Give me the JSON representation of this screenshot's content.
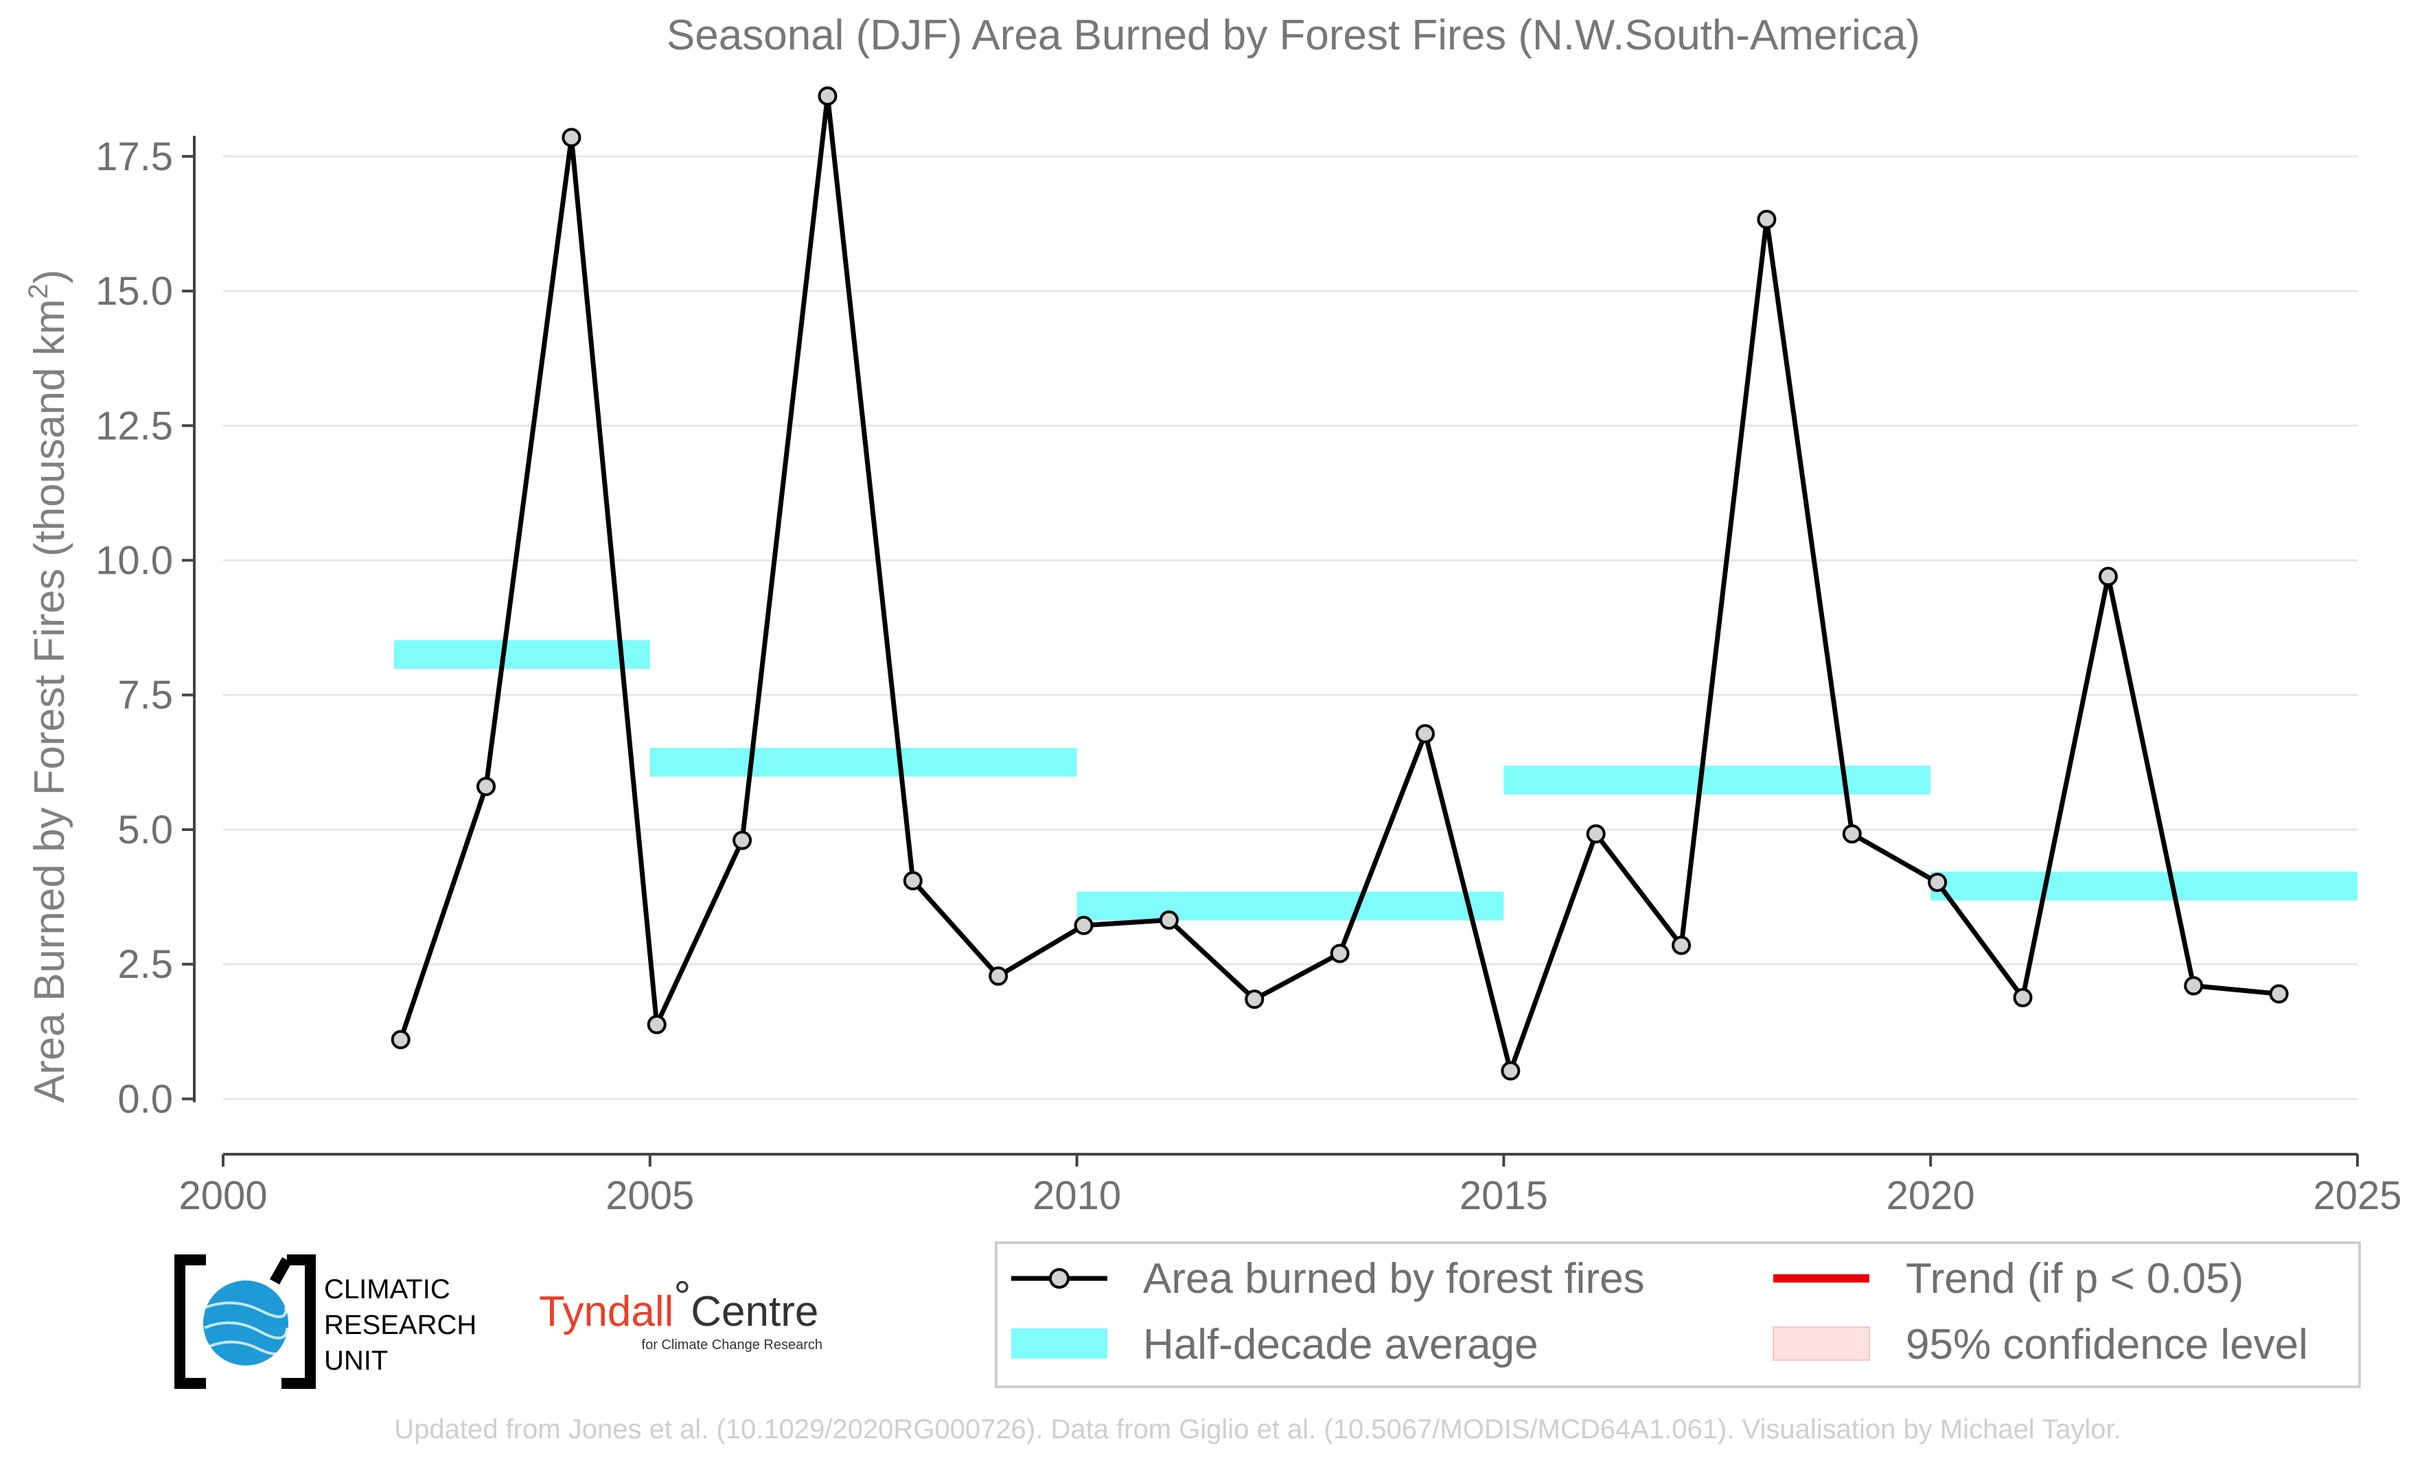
{
  "chart_data": {
    "type": "line",
    "title": "Seasonal (DJF) Area Burned by Forest Fires (N.W.South-America)",
    "ylabel_main": "Area Burned by Forest Fires (thousand km",
    "ylabel_sup": "2",
    "ylabel_end": ")",
    "xlim": [
      2000,
      2025
    ],
    "ylim": [
      -0.9,
      18.9
    ],
    "xticks": [
      2000,
      2005,
      2010,
      2015,
      2020,
      2025
    ],
    "yticks": [
      0.0,
      2.5,
      5.0,
      7.5,
      10.0,
      12.5,
      15.0,
      17.5
    ],
    "ytick_labels": [
      "0.0",
      "2.5",
      "5.0",
      "7.5",
      "10.0",
      "12.5",
      "15.0",
      "17.5"
    ],
    "grid": true,
    "series": [
      {
        "name": "Area burned by forest fires",
        "color": "#000000",
        "marker_fill": "#d3d3d3",
        "x": [
          2002.08,
          2003.08,
          2004.08,
          2005.08,
          2006.08,
          2007.08,
          2008.08,
          2009.08,
          2010.08,
          2011.08,
          2012.08,
          2013.08,
          2014.08,
          2015.08,
          2016.08,
          2017.08,
          2018.08,
          2019.08,
          2020.08,
          2021.08,
          2022.08,
          2023.08,
          2024.08
        ],
        "y": [
          1.1,
          5.8,
          17.85,
          1.38,
          4.8,
          18.62,
          4.05,
          2.28,
          3.22,
          3.32,
          1.85,
          2.7,
          6.78,
          0.52,
          4.92,
          2.85,
          16.33,
          4.92,
          4.02,
          1.88,
          9.7,
          2.1,
          1.95
        ]
      },
      {
        "name": "Half-decade average",
        "color": "#7ffcfc",
        "segments": [
          {
            "x0": 2002.0,
            "x1": 2005.0,
            "y": 8.25
          },
          {
            "x0": 2005.0,
            "x1": 2010.0,
            "y": 6.25
          },
          {
            "x0": 2010.0,
            "x1": 2015.0,
            "y": 3.58
          },
          {
            "x0": 2015.0,
            "x1": 2020.0,
            "y": 5.92
          },
          {
            "x0": 2020.0,
            "x1": 2025.0,
            "y": 3.95
          }
        ]
      }
    ],
    "legend": {
      "placement": "bottom-right",
      "items": [
        {
          "label": "Area burned by forest fires",
          "kind": "line-marker",
          "color": "#000000"
        },
        {
          "label": "Trend (if p < 0.05)",
          "kind": "line",
          "color": "#e8000b"
        },
        {
          "label": "Half-decade average",
          "kind": "band",
          "color": "#7ffcfc"
        },
        {
          "label": "95% confidence level",
          "kind": "patch",
          "color": "#fde0e0"
        }
      ]
    }
  },
  "logos": {
    "cru_lines": [
      "CLIMATIC",
      "RESEARCH",
      "UNIT"
    ],
    "tyndall_name": "Tyndall",
    "tyndall_degree": "°",
    "tyndall_centre": "Centre",
    "tyndall_sub": "for Climate Change Research"
  },
  "credit": "Updated from Jones et al. (10.1029/2020RG000726). Data from Giglio et al. (10.5067/MODIS/MCD64A1.061). Visualisation by Michael Taylor."
}
